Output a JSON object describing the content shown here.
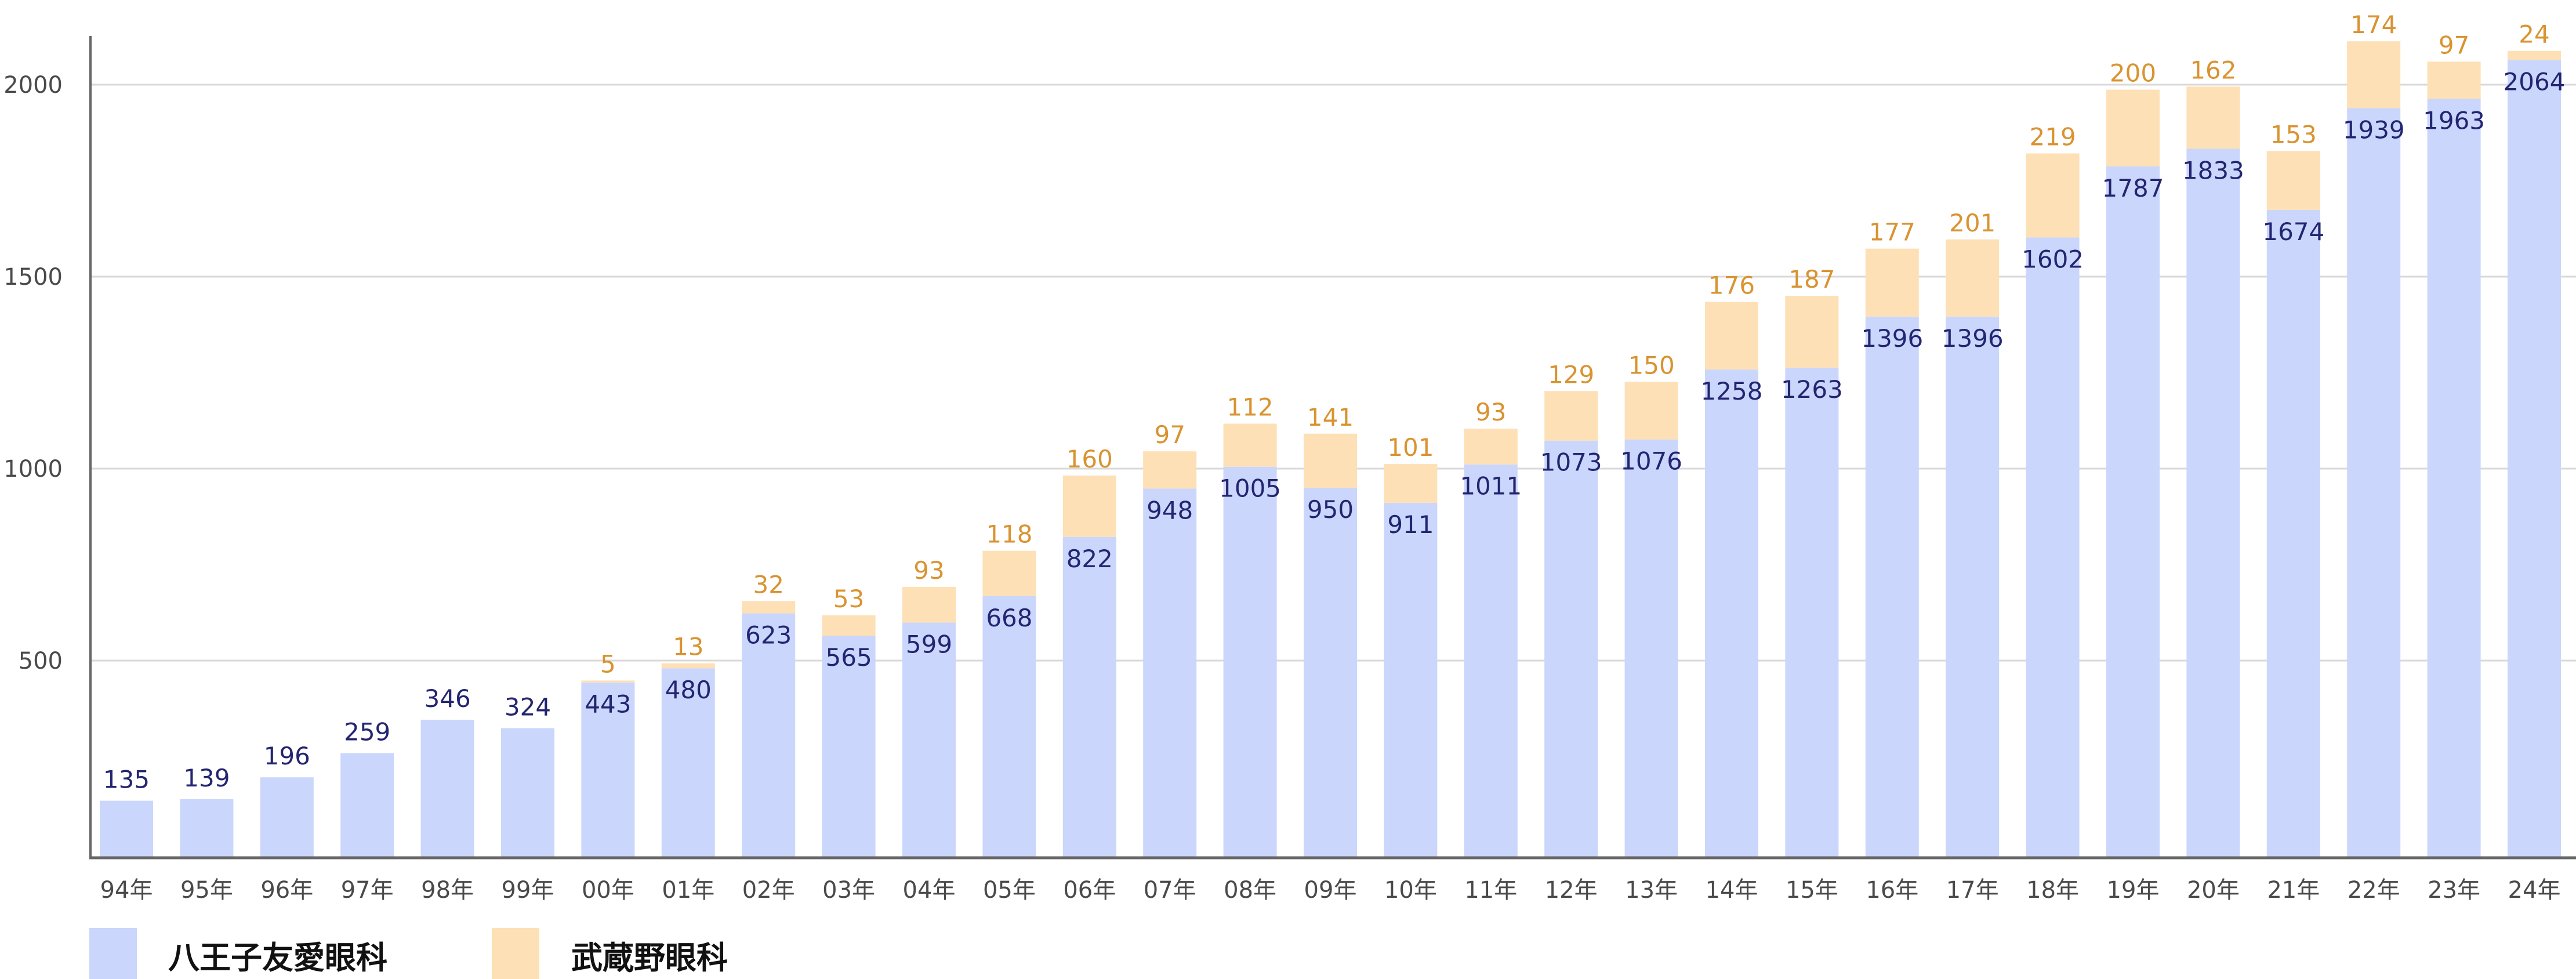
{
  "chart_data": {
    "type": "bar",
    "stacked": true,
    "title": "",
    "xlabel": "",
    "ylabel": "",
    "ylim": [
      0,
      2100
    ],
    "yticks": [
      500,
      1000,
      1500,
      2000
    ],
    "grid": true,
    "legend_position": "bottom-left",
    "categories": [
      "94年",
      "95年",
      "96年",
      "97年",
      "98年",
      "99年",
      "00年",
      "01年",
      "02年",
      "03年",
      "04年",
      "05年",
      "06年",
      "07年",
      "08年",
      "09年",
      "10年",
      "11年",
      "12年",
      "13年",
      "14年",
      "15年",
      "16年",
      "17年",
      "18年",
      "19年",
      "20年",
      "21年",
      "22年",
      "23年",
      "24年"
    ],
    "series": [
      {
        "name": "八王子友愛眼科",
        "color": "#cad6fc",
        "label_color": "#242570",
        "values": [
          135,
          139,
          196,
          259,
          346,
          324,
          443,
          480,
          623,
          565,
          599,
          668,
          822,
          948,
          1005,
          950,
          911,
          1011,
          1073,
          1076,
          1258,
          1263,
          1396,
          1396,
          1602,
          1787,
          1833,
          1674,
          1939,
          1963,
          2064
        ]
      },
      {
        "name": "武蔵野眼科",
        "color": "#fde0b5",
        "label_color": "#d99330",
        "values": [
          null,
          null,
          null,
          null,
          null,
          null,
          5,
          13,
          32,
          53,
          93,
          118,
          160,
          97,
          112,
          141,
          101,
          93,
          129,
          150,
          176,
          187,
          177,
          201,
          219,
          200,
          162,
          153,
          174,
          97,
          24
        ]
      }
    ]
  }
}
